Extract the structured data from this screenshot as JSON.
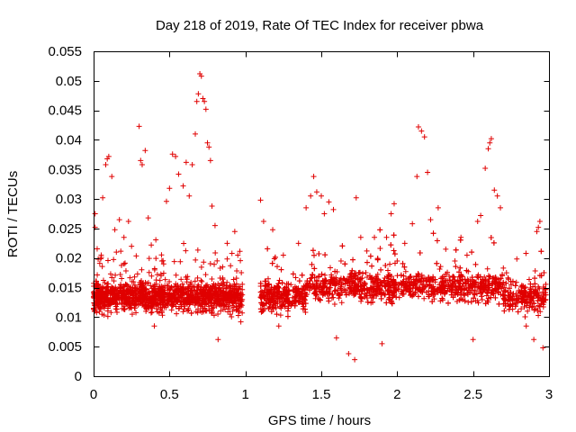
{
  "chart_data": {
    "type": "scatter",
    "title": "Day 218 of 2019, Rate Of TEC Index for receiver pbwa",
    "xlabel": "GPS time / hours",
    "ylabel": "ROTI / TECUs",
    "xlim": [
      0,
      3
    ],
    "ylim": [
      0,
      0.055
    ],
    "x_ticks": [
      0,
      0.5,
      1,
      1.5,
      2,
      2.5,
      3
    ],
    "x_tick_labels": [
      "0",
      "0.5",
      "1",
      "1.5",
      "2",
      "2.5",
      "3"
    ],
    "y_ticks": [
      0,
      0.005,
      0.01,
      0.015,
      0.02,
      0.025,
      0.03,
      0.035,
      0.04,
      0.045,
      0.05,
      0.055
    ],
    "y_tick_labels": [
      "0",
      "0.005",
      "0.01",
      "0.015",
      "0.02",
      "0.025",
      "0.03",
      "0.035",
      "0.04",
      "0.045",
      "0.05",
      "0.055"
    ],
    "grid": false,
    "legend": "none",
    "marker": "+",
    "series_color": "#e00000",
    "data_gap": [
      0.98,
      1.1
    ],
    "point_count_per_segment": [
      1400,
      2200
    ],
    "series": [
      {
        "name": "ROTI",
        "points": [
          [
            0.0,
            0.0115
          ],
          [
            0.01,
            0.0275
          ],
          [
            0.01,
            0.0252
          ],
          [
            0.02,
            0.0156
          ],
          [
            0.03,
            0.0198
          ],
          [
            0.05,
            0.0205
          ],
          [
            0.06,
            0.0302
          ],
          [
            0.08,
            0.0358
          ],
          [
            0.09,
            0.0368
          ],
          [
            0.1,
            0.0372
          ],
          [
            0.12,
            0.0338
          ],
          [
            0.14,
            0.0248
          ],
          [
            0.15,
            0.021
          ],
          [
            0.17,
            0.0265
          ],
          [
            0.2,
            0.0235
          ],
          [
            0.23,
            0.0262
          ],
          [
            0.25,
            0.022
          ],
          [
            0.27,
            0.0168
          ],
          [
            0.3,
            0.0423
          ],
          [
            0.31,
            0.0365
          ],
          [
            0.32,
            0.0358
          ],
          [
            0.34,
            0.0382
          ],
          [
            0.36,
            0.0268
          ],
          [
            0.38,
            0.0222
          ],
          [
            0.4,
            0.0085
          ],
          [
            0.42,
            0.0172
          ],
          [
            0.45,
            0.0138
          ],
          [
            0.48,
            0.0296
          ],
          [
            0.5,
            0.0318
          ],
          [
            0.52,
            0.0376
          ],
          [
            0.54,
            0.0372
          ],
          [
            0.56,
            0.0342
          ],
          [
            0.59,
            0.0322
          ],
          [
            0.61,
            0.0362
          ],
          [
            0.63,
            0.0305
          ],
          [
            0.65,
            0.0358
          ],
          [
            0.67,
            0.041
          ],
          [
            0.68,
            0.0465
          ],
          [
            0.69,
            0.0478
          ],
          [
            0.7,
            0.0512
          ],
          [
            0.71,
            0.0508
          ],
          [
            0.72,
            0.047
          ],
          [
            0.73,
            0.0465
          ],
          [
            0.74,
            0.0452
          ],
          [
            0.75,
            0.0395
          ],
          [
            0.76,
            0.0388
          ],
          [
            0.77,
            0.0365
          ],
          [
            0.78,
            0.0288
          ],
          [
            0.8,
            0.0255
          ],
          [
            0.82,
            0.0062
          ],
          [
            0.85,
            0.0185
          ],
          [
            0.88,
            0.0225
          ],
          [
            0.9,
            0.0105
          ],
          [
            0.93,
            0.0245
          ],
          [
            0.95,
            0.0205
          ],
          [
            0.97,
            0.0092
          ],
          [
            1.1,
            0.0298
          ],
          [
            1.12,
            0.0262
          ],
          [
            1.15,
            0.0165
          ],
          [
            1.18,
            0.0248
          ],
          [
            1.22,
            0.0085
          ],
          [
            1.25,
            0.0205
          ],
          [
            1.3,
            0.0155
          ],
          [
            1.35,
            0.0225
          ],
          [
            1.4,
            0.0285
          ],
          [
            1.43,
            0.0305
          ],
          [
            1.45,
            0.0338
          ],
          [
            1.47,
            0.0312
          ],
          [
            1.5,
            0.0305
          ],
          [
            1.52,
            0.0275
          ],
          [
            1.55,
            0.0295
          ],
          [
            1.58,
            0.0282
          ],
          [
            1.6,
            0.0065
          ],
          [
            1.63,
            0.0195
          ],
          [
            1.68,
            0.0038
          ],
          [
            1.72,
            0.0028
          ],
          [
            1.73,
            0.0302
          ],
          [
            1.76,
            0.0235
          ],
          [
            1.8,
            0.0212
          ],
          [
            1.85,
            0.0235
          ],
          [
            1.9,
            0.0055
          ],
          [
            1.93,
            0.0235
          ],
          [
            1.96,
            0.0275
          ],
          [
            1.98,
            0.0292
          ],
          [
            2.0,
            0.0195
          ],
          [
            2.05,
            0.0225
          ],
          [
            2.1,
            0.0258
          ],
          [
            2.13,
            0.0338
          ],
          [
            2.14,
            0.0422
          ],
          [
            2.16,
            0.0415
          ],
          [
            2.18,
            0.0405
          ],
          [
            2.2,
            0.0345
          ],
          [
            2.22,
            0.0265
          ],
          [
            2.27,
            0.0285
          ],
          [
            2.32,
            0.0215
          ],
          [
            2.38,
            0.0195
          ],
          [
            2.42,
            0.0235
          ],
          [
            2.46,
            0.0205
          ],
          [
            2.5,
            0.0062
          ],
          [
            2.53,
            0.0262
          ],
          [
            2.55,
            0.0272
          ],
          [
            2.58,
            0.0352
          ],
          [
            2.6,
            0.0385
          ],
          [
            2.61,
            0.0395
          ],
          [
            2.62,
            0.0402
          ],
          [
            2.64,
            0.0315
          ],
          [
            2.66,
            0.0305
          ],
          [
            2.68,
            0.0285
          ],
          [
            2.72,
            0.0175
          ],
          [
            2.76,
            0.0135
          ],
          [
            2.8,
            0.0145
          ],
          [
            2.85,
            0.0085
          ],
          [
            2.9,
            0.0062
          ],
          [
            2.92,
            0.0245
          ],
          [
            2.93,
            0.0252
          ],
          [
            2.94,
            0.0262
          ],
          [
            2.96,
            0.0048
          ],
          [
            2.97,
            0.0148
          ]
        ]
      }
    ]
  }
}
